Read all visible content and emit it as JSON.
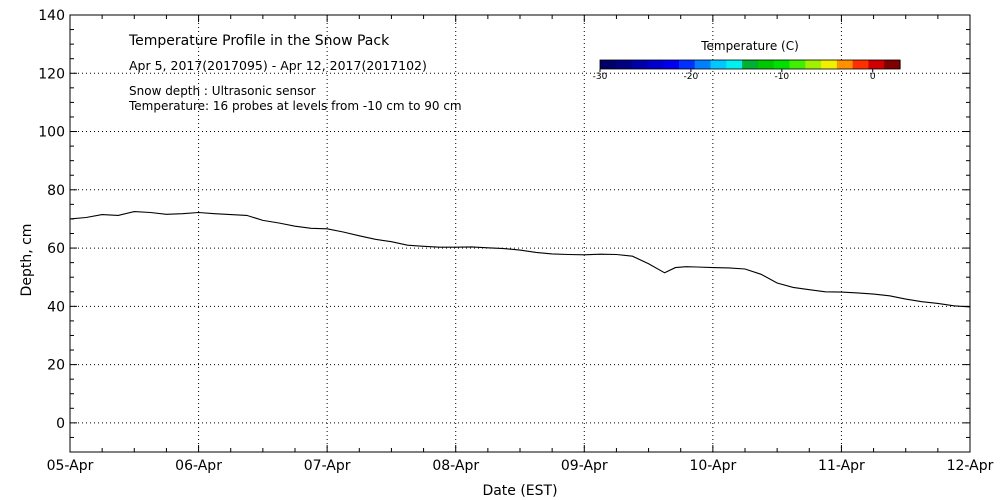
{
  "chart_data": {
    "type": "line",
    "title": "Temperature Profile in the Snow Pack",
    "subtitle": "Apr  5, 2017(2017095) - Apr 12, 2017(2017102)",
    "notes": [
      "Snow depth : Ultrasonic sensor",
      "Temperature: 16 probes at levels from -10 cm to 90 cm"
    ],
    "xlabel": "Date (EST)",
    "ylabel": "Depth, cm",
    "x_ticks": [
      "05-Apr",
      "06-Apr",
      "07-Apr",
      "08-Apr",
      "09-Apr",
      "10-Apr",
      "11-Apr",
      "12-Apr"
    ],
    "xlim": [
      "2017-04-05",
      "2017-04-12"
    ],
    "y_ticks": [
      0,
      20,
      40,
      60,
      80,
      100,
      120,
      140
    ],
    "ylim": [
      -10,
      140
    ],
    "grid": true,
    "series": [
      {
        "color": "#000000",
        "x": [
          "2017-04-05 00:00",
          "2017-04-05 03:00",
          "2017-04-05 06:00",
          "2017-04-05 09:00",
          "2017-04-05 12:00",
          "2017-04-05 15:00",
          "2017-04-05 18:00",
          "2017-04-05 21:00",
          "2017-04-06 00:00",
          "2017-04-06 03:00",
          "2017-04-06 06:00",
          "2017-04-06 09:00",
          "2017-04-06 12:00",
          "2017-04-06 15:00",
          "2017-04-06 18:00",
          "2017-04-06 21:00",
          "2017-04-07 00:00",
          "2017-04-07 03:00",
          "2017-04-07 06:00",
          "2017-04-07 09:00",
          "2017-04-07 12:00",
          "2017-04-07 15:00",
          "2017-04-07 18:00",
          "2017-04-07 21:00",
          "2017-04-08 00:00",
          "2017-04-08 03:00",
          "2017-04-08 06:00",
          "2017-04-08 09:00",
          "2017-04-08 12:00",
          "2017-04-08 15:00",
          "2017-04-08 18:00",
          "2017-04-08 21:00",
          "2017-04-09 00:00",
          "2017-04-09 03:00",
          "2017-04-09 06:00",
          "2017-04-09 09:00",
          "2017-04-09 12:00",
          "2017-04-09 15:00",
          "2017-04-09 17:00",
          "2017-04-09 19:00",
          "2017-04-09 21:00",
          "2017-04-10 00:00",
          "2017-04-10 03:00",
          "2017-04-10 06:00",
          "2017-04-10 09:00",
          "2017-04-10 12:00",
          "2017-04-10 15:00",
          "2017-04-10 18:00",
          "2017-04-10 21:00",
          "2017-04-11 00:00",
          "2017-04-11 03:00",
          "2017-04-11 06:00",
          "2017-04-11 09:00",
          "2017-04-11 12:00",
          "2017-04-11 15:00",
          "2017-04-11 18:00",
          "2017-04-11 21:00",
          "2017-04-12 00:00"
        ],
        "y": [
          70.0,
          70.5,
          71.5,
          71.2,
          72.5,
          72.2,
          71.6,
          71.8,
          72.2,
          71.8,
          71.5,
          71.2,
          69.5,
          68.6,
          67.5,
          66.8,
          66.6,
          65.5,
          64.2,
          63.0,
          62.2,
          61.0,
          60.6,
          60.3,
          60.3,
          60.4,
          60.1,
          59.8,
          59.3,
          58.5,
          58.0,
          57.8,
          57.7,
          57.9,
          57.8,
          57.2,
          54.6,
          51.5,
          53.3,
          53.6,
          53.5,
          53.3,
          53.2,
          52.8,
          51.0,
          48.0,
          46.5,
          45.7,
          45.0,
          44.9,
          44.6,
          44.2,
          43.6,
          42.5,
          41.6,
          41.0,
          40.2,
          39.8
        ]
      }
    ],
    "colorbar": {
      "title": "Temperature (C)",
      "min": -30,
      "max": 3,
      "tick_values": [
        -30,
        -20,
        -10,
        0
      ],
      "tick_labels": [
        "-30",
        "-20",
        "-10",
        "0"
      ],
      "colors": [
        "#000066",
        "#000080",
        "#0000a8",
        "#0000cc",
        "#0000ee",
        "#0030ff",
        "#0080ff",
        "#00c8ff",
        "#00f0f0",
        "#00b030",
        "#00c800",
        "#00e000",
        "#40f000",
        "#a0f000",
        "#f0f000",
        "#ff9000",
        "#ff3000",
        "#d00000",
        "#800000"
      ]
    }
  }
}
